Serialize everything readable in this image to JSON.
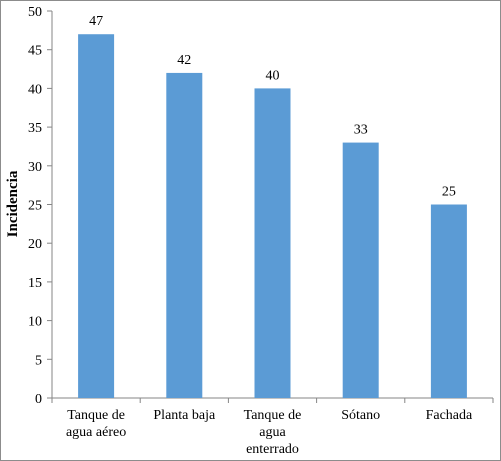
{
  "chart_data": {
    "type": "bar",
    "categories": [
      [
        "Tanque de",
        "agua aéreo"
      ],
      [
        "Planta baja"
      ],
      [
        "Tanque de",
        "agua",
        "enterrado"
      ],
      [
        "Sótano"
      ],
      [
        "Fachada"
      ]
    ],
    "values": [
      47,
      42,
      40,
      33,
      25
    ],
    "data_labels": [
      "47",
      "42",
      "40",
      "33",
      "25"
    ],
    "title": "",
    "xlabel": "",
    "ylabel": "Incidencia",
    "ylim": [
      0,
      50
    ],
    "yticks": [
      0,
      5,
      10,
      15,
      20,
      25,
      30,
      35,
      40,
      45,
      50
    ],
    "grid": false,
    "legend": "none",
    "bar_color": "#5b9bd5"
  }
}
